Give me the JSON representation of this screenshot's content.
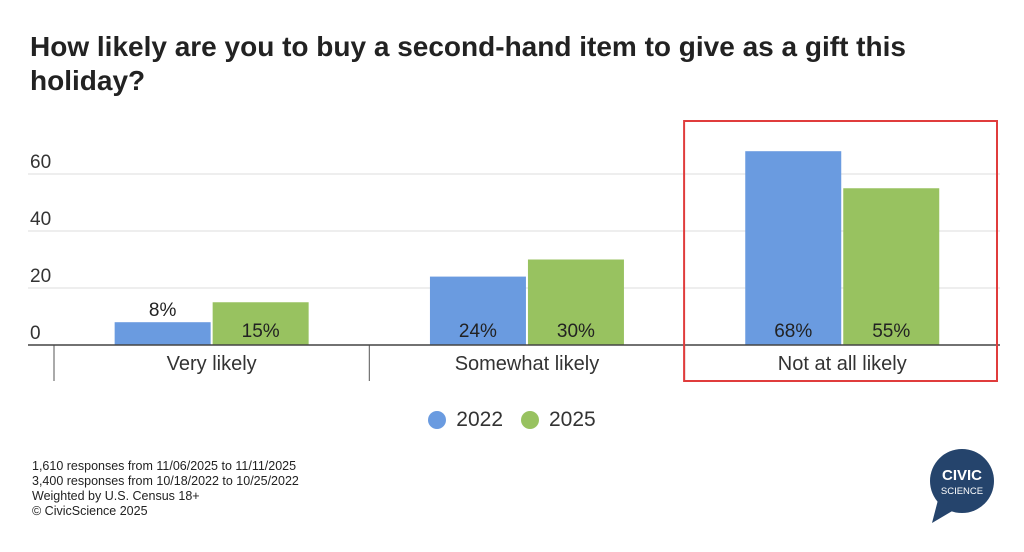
{
  "chart_data": {
    "type": "bar",
    "title": "How likely are you to buy a second-hand item to give as a gift this holiday?",
    "categories": [
      "Very likely",
      "Somewhat likely",
      "Not at all likely"
    ],
    "series": [
      {
        "name": "2022",
        "values": [
          8,
          24,
          68
        ],
        "labels": [
          "8%",
          "24%",
          "68%"
        ],
        "color": "#6a9be0"
      },
      {
        "name": "2025",
        "values": [
          15,
          30,
          55
        ],
        "labels": [
          "15%",
          "30%",
          "55%"
        ],
        "color": "#98c260"
      }
    ],
    "y_ticks": [
      0,
      20,
      40,
      60
    ],
    "ylim": [
      0,
      70
    ],
    "grid": true,
    "legend_position": "bottom",
    "highlight": {
      "category": "Not at all likely",
      "color": "#e03c3c"
    }
  },
  "footnotes": [
    "1,610 responses from 11/06/2025 to 11/11/2025",
    "3,400 responses from 10/18/2022 to 10/25/2022",
    "Weighted by U.S. Census 18+",
    "© CivicScience 2025"
  ],
  "logo": {
    "line1": "CIVIC",
    "line2": "SCIENCE",
    "color": "#25446c"
  }
}
